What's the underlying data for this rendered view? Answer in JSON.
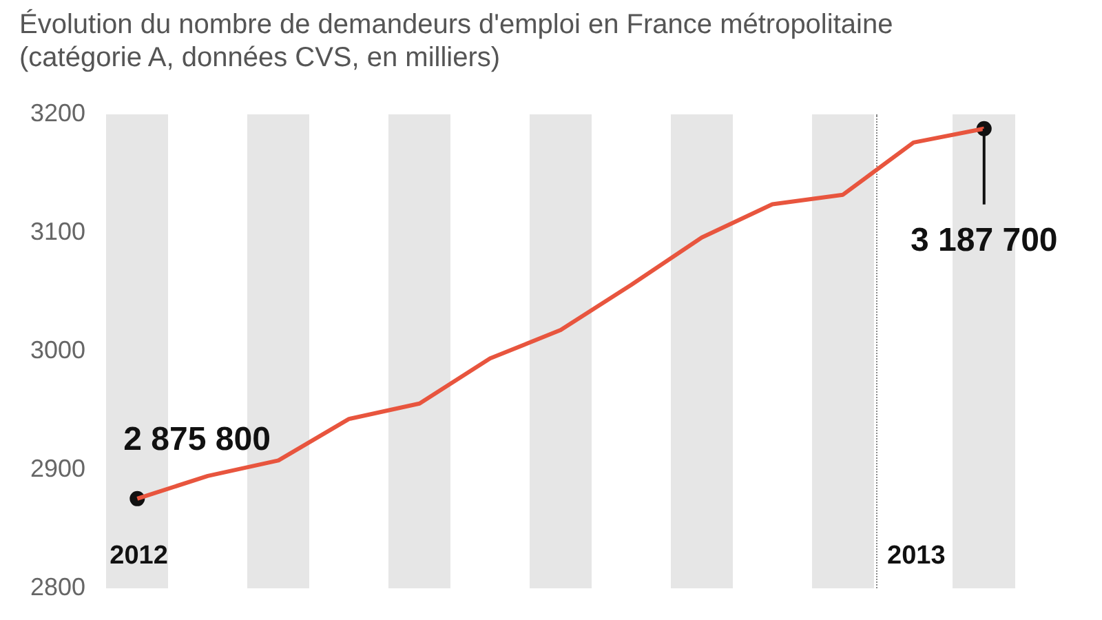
{
  "chart_data": {
    "type": "line",
    "title": "Évolution du nombre de demandeurs d'emploi en France métropolitaine (catégorie A, données CVS, en milliers)",
    "categories": [
      null,
      null,
      null,
      null,
      null,
      null,
      null,
      null,
      null,
      null,
      null,
      null,
      null
    ],
    "series": [
      {
        "color": "#e8553e",
        "values": [
          2875.8,
          2895,
          2908,
          2943,
          2956,
          2994,
          3018,
          3056,
          3096,
          3124,
          3132,
          3176,
          3187.7
        ],
        "marker": "none"
      },
      {
        "type": "scatter",
        "color": "#111111",
        "values": [
          2875.8,
          null,
          null,
          null,
          null,
          null,
          null,
          null,
          null,
          null,
          null,
          null,
          3187.7
        ],
        "marker": "circle"
      }
    ],
    "ylim": [
      2800,
      3200
    ],
    "yticks": [
      2800,
      2900,
      3000,
      3100,
      3200
    ],
    "grid": false,
    "legend": false,
    "annotations": [
      "2012",
      "2013",
      "2 875 800",
      "3 187 700"
    ],
    "tick_labels": "y",
    "line_style": "solid"
  }
}
